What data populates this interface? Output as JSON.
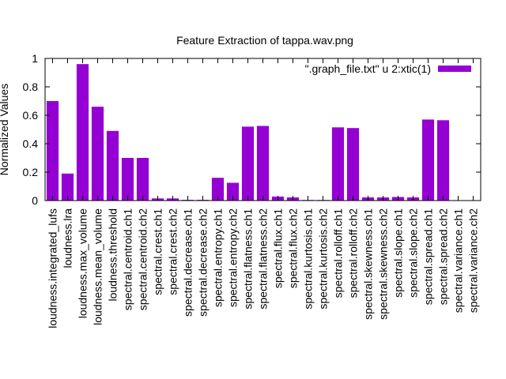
{
  "chart_data": {
    "type": "bar",
    "title": "Feature Extraction of tappa.wav.png",
    "xlabel": "",
    "ylabel": "Normalized Values",
    "ylim": [
      0,
      1
    ],
    "yticks": [
      "0",
      "0.2",
      "0.4",
      "0.6",
      "0.8",
      "1"
    ],
    "ytick_values": [
      0,
      0.2,
      0.4,
      0.6,
      0.8,
      1
    ],
    "legend": {
      "label": "\".graph_file.txt\" u 2:xtic(1)",
      "position": "top-right"
    },
    "bar_color": "#9400d3",
    "grid": false,
    "categories": [
      "loudness.integrated_lufs",
      "loudness.lra",
      "loudness.max_volume",
      "loudness.mean_volume",
      "loudness.threshold",
      "spectral.centroid.ch1",
      "spectral.centroid.ch2",
      "spectral.crest.ch1",
      "spectral.crest.ch2",
      "spectral.decrease.ch1",
      "spectral.decrease.ch2",
      "spectral.entropy.ch1",
      "spectral.entropy.ch2",
      "spectral.flatness.ch1",
      "spectral.flatness.ch2",
      "spectral.flux.ch1",
      "spectral.flux.ch2",
      "spectral.kurtosis.ch1",
      "spectral.kurtosis.ch2",
      "spectral.rolloff.ch1",
      "spectral.rolloff.ch2",
      "spectral.skewness.ch1",
      "spectral.skewness.ch2",
      "spectral.slope.ch1",
      "spectral.slope.ch2",
      "spectral.spread.ch1",
      "spectral.spread.ch2",
      "spectral.variance.ch1",
      "spectral.variance.ch2"
    ],
    "values": [
      0.7,
      0.19,
      0.96,
      0.66,
      0.49,
      0.3,
      0.3,
      0.015,
      0.015,
      0.005,
      0.005,
      0.16,
      0.125,
      0.52,
      0.525,
      0.028,
      0.022,
      0.004,
      0.004,
      0.515,
      0.51,
      0.022,
      0.022,
      0.025,
      0.022,
      0.57,
      0.565,
      0.0,
      0.0
    ]
  }
}
